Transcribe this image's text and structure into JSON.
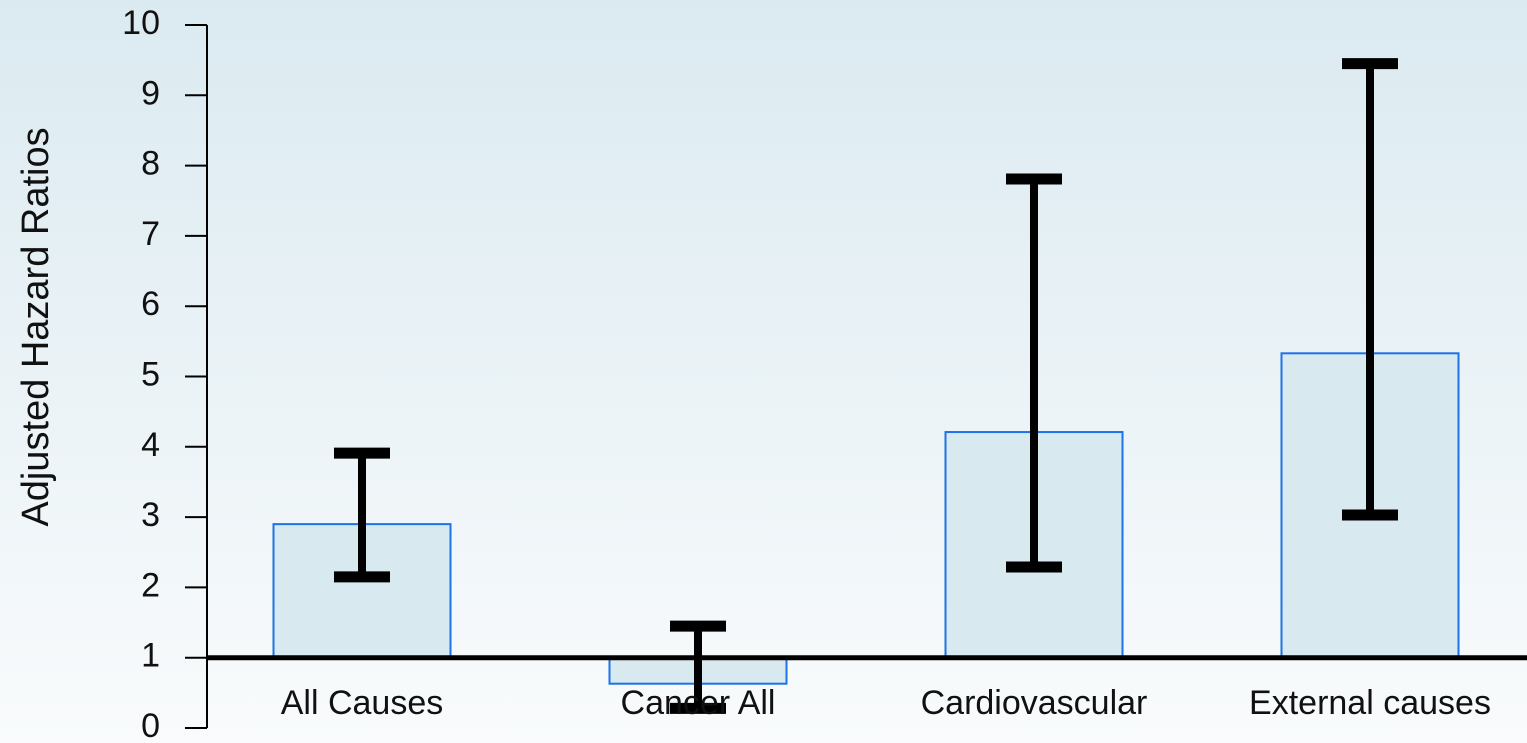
{
  "chart_data": {
    "type": "bar",
    "y_label": "Adjusted Hazard Ratios",
    "categories": [
      "All Causes",
      "Cancer All",
      "Cardiovascular",
      "External causes"
    ],
    "values": [
      2.9,
      0.63,
      4.21,
      5.33
    ],
    "lower": [
      2.15,
      0.28,
      2.29,
      3.03
    ],
    "upper": [
      3.91,
      1.45,
      7.81,
      9.45
    ],
    "baseline": 1,
    "color": "#d9e9f0",
    "edge_color": "#1a73e8",
    "error_color": "#000000",
    "ylim": [
      0,
      10
    ],
    "yticks": [
      0,
      1,
      2,
      3,
      4,
      5,
      6,
      7,
      8,
      9,
      10
    ]
  }
}
